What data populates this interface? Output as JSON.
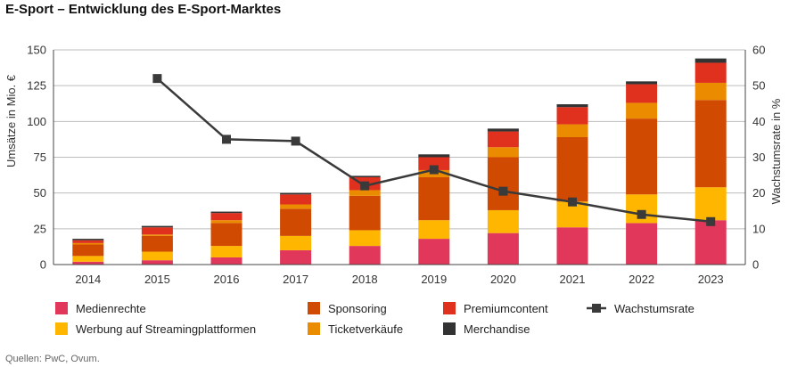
{
  "chart_data": {
    "type": "bar",
    "title": "E-Sport – Entwicklung des E-Sport-Marktes",
    "ylabel": "Umsätze in Mio. €",
    "y2label": "Wachstumsrate in %",
    "ylim": [
      0,
      150
    ],
    "y2lim": [
      0,
      60
    ],
    "yticks": [
      0,
      25,
      50,
      75,
      100,
      125,
      150
    ],
    "y2ticks": [
      0,
      10,
      20,
      30,
      40,
      50,
      60
    ],
    "categories": [
      "2014",
      "2015",
      "2016",
      "2017",
      "2018",
      "2019",
      "2020",
      "2021",
      "2022",
      "2023"
    ],
    "series": [
      {
        "name": "Medienrechte",
        "color": "#e0375a",
        "values": [
          2,
          3,
          5,
          10,
          13,
          18,
          22,
          26,
          29,
          31
        ]
      },
      {
        "name": "Werbung auf Streamingplattformen",
        "color": "#ffb600",
        "values": [
          4,
          6,
          8,
          10,
          11,
          13,
          16,
          18,
          20,
          23
        ]
      },
      {
        "name": "Sponsoring",
        "color": "#d04a02",
        "values": [
          8,
          11,
          16,
          19,
          24,
          30,
          37,
          45,
          53,
          61
        ]
      },
      {
        "name": "Ticketverkäufe",
        "color": "#eb8c00",
        "values": [
          1,
          1,
          2,
          3,
          4,
          5,
          7,
          9,
          11,
          12
        ]
      },
      {
        "name": "Premiumcontent",
        "color": "#e0301e",
        "values": [
          2,
          5,
          5,
          7,
          9,
          9,
          11,
          12,
          13,
          14
        ]
      },
      {
        "name": "Merchandise",
        "color": "#333333",
        "values": [
          1,
          1,
          1,
          1,
          1,
          2,
          2,
          2,
          2,
          3
        ]
      }
    ],
    "line": {
      "name": "Wachstumsrate",
      "color": "#3a3a3a",
      "x": [
        "2015",
        "2016",
        "2017",
        "2018",
        "2019",
        "2020",
        "2021",
        "2022",
        "2023"
      ],
      "values": [
        52,
        35,
        34.5,
        22,
        26.5,
        20.5,
        17.5,
        14,
        12
      ]
    }
  },
  "source": "Quellen: PwC, Ovum."
}
